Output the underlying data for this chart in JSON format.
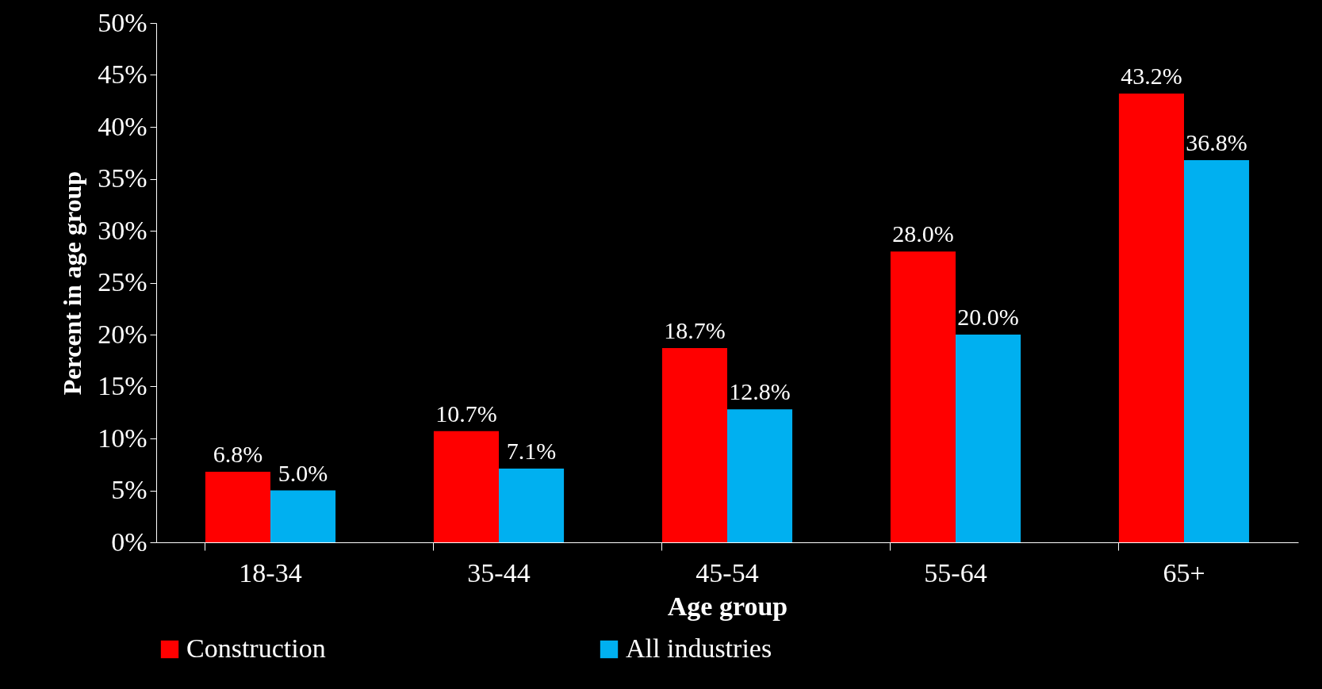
{
  "chart_data": {
    "type": "bar",
    "xlabel": "Age group",
    "ylabel": "Percent in age group",
    "categories": [
      "18-34",
      "35-44",
      "45-54",
      "55-64",
      "65+"
    ],
    "series": [
      {
        "name": "Construction",
        "color": "#ff0000",
        "values": [
          6.8,
          10.7,
          18.7,
          28.0,
          43.2
        ],
        "value_labels": [
          "6.8%",
          "10.7%",
          "18.7%",
          "28.0%",
          "43.2%"
        ]
      },
      {
        "name": "All industries",
        "color": "#00b0f0",
        "values": [
          5.0,
          7.1,
          12.8,
          20.0,
          36.8
        ],
        "value_labels": [
          "5.0%",
          "7.1%",
          "12.8%",
          "20.0%",
          "36.8%"
        ]
      }
    ],
    "ylim": [
      0,
      50
    ],
    "yticks": [
      {
        "value": 0,
        "label": "0%"
      },
      {
        "value": 5,
        "label": "5%"
      },
      {
        "value": 10,
        "label": "10%"
      },
      {
        "value": 15,
        "label": "15%"
      },
      {
        "value": 20,
        "label": "20%"
      },
      {
        "value": 25,
        "label": "25%"
      },
      {
        "value": 30,
        "label": "30%"
      },
      {
        "value": 35,
        "label": "35%"
      },
      {
        "value": 40,
        "label": "40%"
      },
      {
        "value": 45,
        "label": "45%"
      },
      {
        "value": 50,
        "label": "50%"
      }
    ],
    "grid": false,
    "legend": "bottom"
  }
}
